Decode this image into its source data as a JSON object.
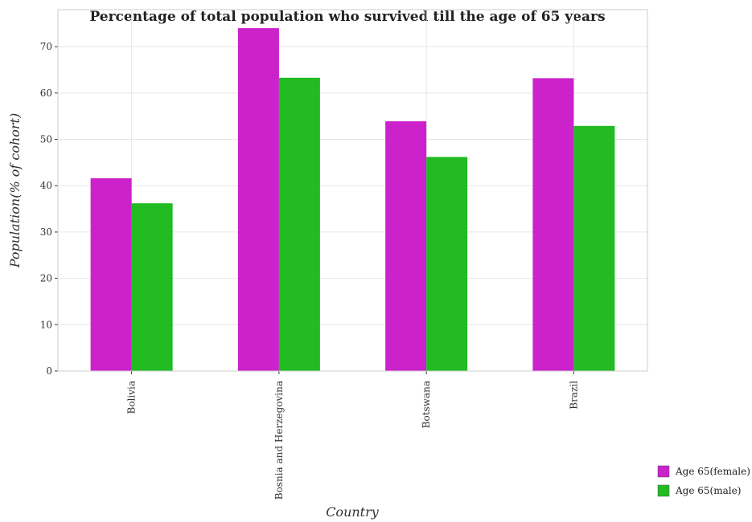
{
  "chart_data": {
    "type": "bar",
    "title": "Percentage of total population who survived till the age of 65 years",
    "xlabel": "Country",
    "ylabel": "Population(% of cohort)",
    "categories": [
      "Bolivia",
      "Bosnia and Herzegovina",
      "Botswana",
      "Brazil"
    ],
    "series": [
      {
        "name": "Age 65(female)",
        "color": "#cc22cc",
        "values": [
          41.6,
          74.0,
          53.9,
          63.2
        ]
      },
      {
        "name": "Age 65(male)",
        "color": "#22bb22",
        "values": [
          36.2,
          63.3,
          46.2,
          52.9
        ]
      }
    ],
    "yticks": [
      0,
      10,
      20,
      30,
      40,
      50,
      60,
      70
    ],
    "ylim": [
      0,
      78
    ],
    "grid": true,
    "legend_position": "bottom-right"
  }
}
